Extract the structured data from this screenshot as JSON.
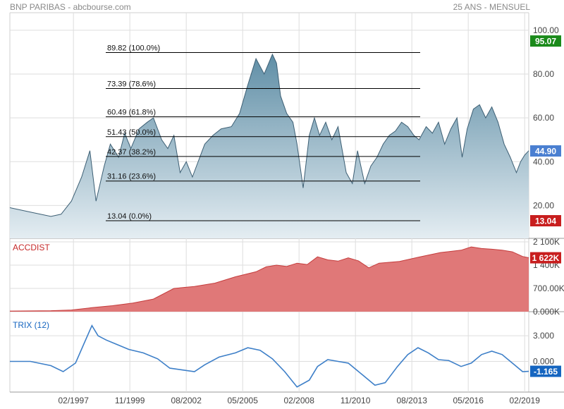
{
  "header": {
    "source": "BNP PARIBAS - abcbourse.com",
    "period": "25 ANS - MENSUEL"
  },
  "colors": {
    "price_fill_top": "#5f8ea6",
    "price_fill_bottom": "#e4edf2",
    "price_line": "#3d5f74",
    "accdist_fill": "#e07878",
    "accdist_line": "#c43c3c",
    "trix_line": "#3d7fc8",
    "badge_high": "#1a8a1a",
    "badge_last": "#4a7fd1",
    "badge_low": "#c81e1e",
    "grid": "#dedede",
    "fib_line": "#000000"
  },
  "chart_data": [
    {
      "type": "area",
      "panel": "price",
      "x_ticks": [
        "02/1997",
        "11/1999",
        "08/2002",
        "05/2005",
        "02/2008",
        "11/2010",
        "08/2013",
        "05/2016",
        "02/2019"
      ],
      "x": [
        1994.0,
        1995.0,
        1996.0,
        1996.5,
        1997.0,
        1997.5,
        1997.9,
        1998.2,
        1998.6,
        1998.9,
        1999.3,
        1999.6,
        1999.9,
        2000.3,
        2000.7,
        2001.0,
        2001.4,
        2001.7,
        2002.0,
        2002.3,
        2002.6,
        2002.9,
        2003.1,
        2003.5,
        2003.9,
        2004.3,
        2004.8,
        2005.2,
        2005.6,
        2006.0,
        2006.4,
        2006.8,
        2007.0,
        2007.2,
        2007.5,
        2007.8,
        2008.0,
        2008.3,
        2008.6,
        2008.85,
        2009.1,
        2009.4,
        2009.7,
        2010.0,
        2010.4,
        2010.7,
        2010.95,
        2011.3,
        2011.6,
        2011.9,
        2012.2,
        2012.5,
        2012.8,
        2013.1,
        2013.4,
        2013.7,
        2013.95,
        2014.3,
        2014.6,
        2014.9,
        2015.2,
        2015.5,
        2015.8,
        2016.05,
        2016.3,
        2016.6,
        2016.9,
        2017.2,
        2017.5,
        2017.8,
        2018.1,
        2018.4,
        2018.7,
        2018.9,
        2019.1,
        2019.3
      ],
      "y": [
        19,
        17,
        15,
        16,
        22,
        33,
        45,
        22,
        38,
        48,
        42,
        53,
        46,
        55,
        58,
        60,
        50,
        46,
        52,
        35,
        40,
        33,
        38,
        48,
        52,
        55,
        56,
        62,
        75,
        87,
        80,
        89,
        85,
        70,
        62,
        58,
        48,
        28,
        52,
        60,
        52,
        58,
        50,
        56,
        35,
        30,
        45,
        30,
        38,
        42,
        48,
        52,
        54,
        58,
        56,
        52,
        50,
        56,
        53,
        58,
        48,
        55,
        60,
        42,
        55,
        64,
        66,
        60,
        65,
        58,
        48,
        42,
        35,
        40,
        43,
        45
      ],
      "y_ticks": [
        20,
        40,
        60,
        80,
        100
      ],
      "ylim": [
        5,
        108
      ],
      "fibonacci": [
        {
          "value": 89.82,
          "label": "89.82  (100.0%)"
        },
        {
          "value": 73.39,
          "label": "73.39  (78.6%)"
        },
        {
          "value": 60.49,
          "label": "60.49  (61.8%)"
        },
        {
          "value": 51.43,
          "label": "51.43  (50.0%)"
        },
        {
          "value": 42.37,
          "label": "42.37  (38.2%)"
        },
        {
          "value": 31.16,
          "label": "31.16  (23.6%)"
        },
        {
          "value": 13.04,
          "label": "13.04  (0.0%)"
        }
      ],
      "badges": [
        {
          "value": 95.07,
          "label": "95.07",
          "color": "#1a8a1a"
        },
        {
          "value": 44.9,
          "label": "44.90",
          "color": "#4a7fd1"
        },
        {
          "value": 13.04,
          "label": "13.04",
          "color": "#c81e1e"
        }
      ]
    },
    {
      "type": "area",
      "panel": "accdist",
      "label": "ACCDIST",
      "x": [
        1994.0,
        1996.0,
        1997.0,
        1998.0,
        1999.0,
        2000.0,
        2001.0,
        2002.0,
        2003.0,
        2004.0,
        2005.0,
        2006.0,
        2006.5,
        2007.0,
        2007.5,
        2008.0,
        2008.5,
        2009.0,
        2009.5,
        2010.0,
        2010.5,
        2011.0,
        2011.5,
        2012.0,
        2013.0,
        2014.0,
        2015.0,
        2016.0,
        2016.5,
        2017.0,
        2017.5,
        2018.0,
        2018.5,
        2019.0,
        2019.3
      ],
      "y": [
        20,
        30,
        50,
        120,
        180,
        260,
        380,
        700,
        760,
        860,
        1050,
        1200,
        1350,
        1400,
        1360,
        1460,
        1420,
        1650,
        1560,
        1520,
        1620,
        1530,
        1320,
        1460,
        1510,
        1650,
        1780,
        1850,
        1950,
        1900,
        1880,
        1850,
        1800,
        1660,
        1622
      ],
      "y_ticks": [
        {
          "v": 0,
          "label": "0.000K"
        },
        {
          "v": 700,
          "label": "700.00K"
        },
        {
          "v": 1400,
          "label": "1 400K"
        },
        {
          "v": 2100,
          "label": "2 100K"
        }
      ],
      "ylim": [
        0,
        2100
      ],
      "badge": {
        "value": 1622,
        "label": "1 622K",
        "color": "#c81e1e"
      }
    },
    {
      "type": "line",
      "panel": "trix",
      "label": "TRIX (12)",
      "x": [
        1994.0,
        1995.0,
        1996.0,
        1996.6,
        1997.2,
        1997.6,
        1998.0,
        1998.3,
        1998.7,
        1999.2,
        1999.8,
        2000.5,
        2001.2,
        2001.8,
        2002.4,
        2003.0,
        2003.5,
        2004.2,
        2005.0,
        2005.6,
        2006.2,
        2006.8,
        2007.4,
        2008.0,
        2008.6,
        2009.0,
        2009.5,
        2010.0,
        2010.5,
        2011.2,
        2011.8,
        2012.3,
        2012.9,
        2013.4,
        2013.9,
        2014.4,
        2014.9,
        2015.4,
        2016.0,
        2016.5,
        2017.0,
        2017.5,
        2018.0,
        2018.6,
        2019.0,
        2019.3
      ],
      "y": [
        0.0,
        0.0,
        -0.5,
        -1.2,
        -0.2,
        2.0,
        4.2,
        3.0,
        2.5,
        2.0,
        1.4,
        1.0,
        0.3,
        -0.8,
        -1.0,
        -1.2,
        -0.4,
        0.5,
        1.0,
        1.6,
        1.3,
        0.3,
        -1.2,
        -3.0,
        -2.2,
        -0.6,
        0.2,
        0.0,
        -0.2,
        -1.6,
        -2.8,
        -2.5,
        -0.6,
        0.8,
        1.6,
        1.0,
        0.2,
        0.1,
        -0.6,
        -0.2,
        0.8,
        1.2,
        0.8,
        -0.4,
        -1.2,
        -1.165
      ],
      "y_ticks": [
        {
          "v": 0,
          "label": "0.000"
        },
        {
          "v": 3,
          "label": "3.000"
        }
      ],
      "ylim": [
        -3.6,
        5
      ],
      "badge": {
        "value": -1.165,
        "label": "-1.165",
        "color": "#1565c0"
      }
    }
  ]
}
